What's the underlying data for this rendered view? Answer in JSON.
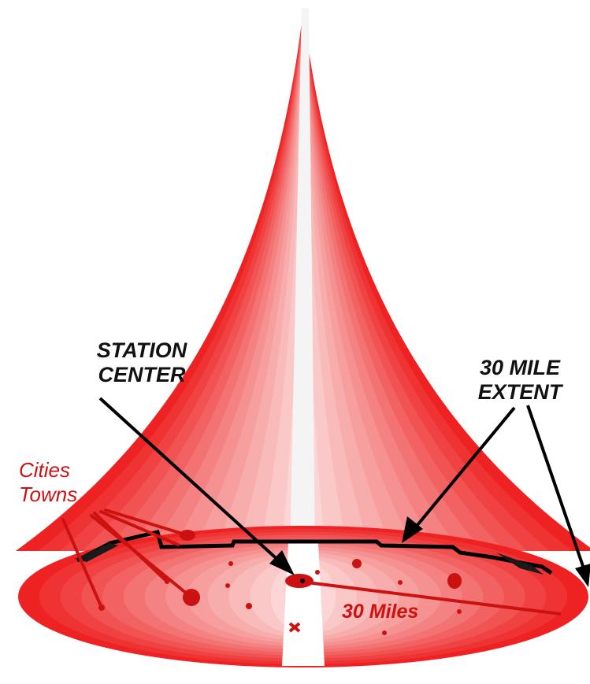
{
  "labels": {
    "station_center": [
      "STATION",
      "CENTER"
    ],
    "mile_extent": [
      "30 MILE",
      "EXTENT"
    ],
    "cities_towns": [
      "Cities",
      "Towns"
    ],
    "miles": "30 Miles"
  },
  "colors": {
    "label_dark": "#111111",
    "label_red": "#cc1111",
    "pointer_dark": "#000000",
    "pointer_red": "#cc1111",
    "cone_outer": "#ee2222",
    "cone_mid": "#f58a8a",
    "cone_inner": "#fde4e4",
    "cone_center": "#f4f4f4",
    "city_dot": "#cc1111"
  }
}
